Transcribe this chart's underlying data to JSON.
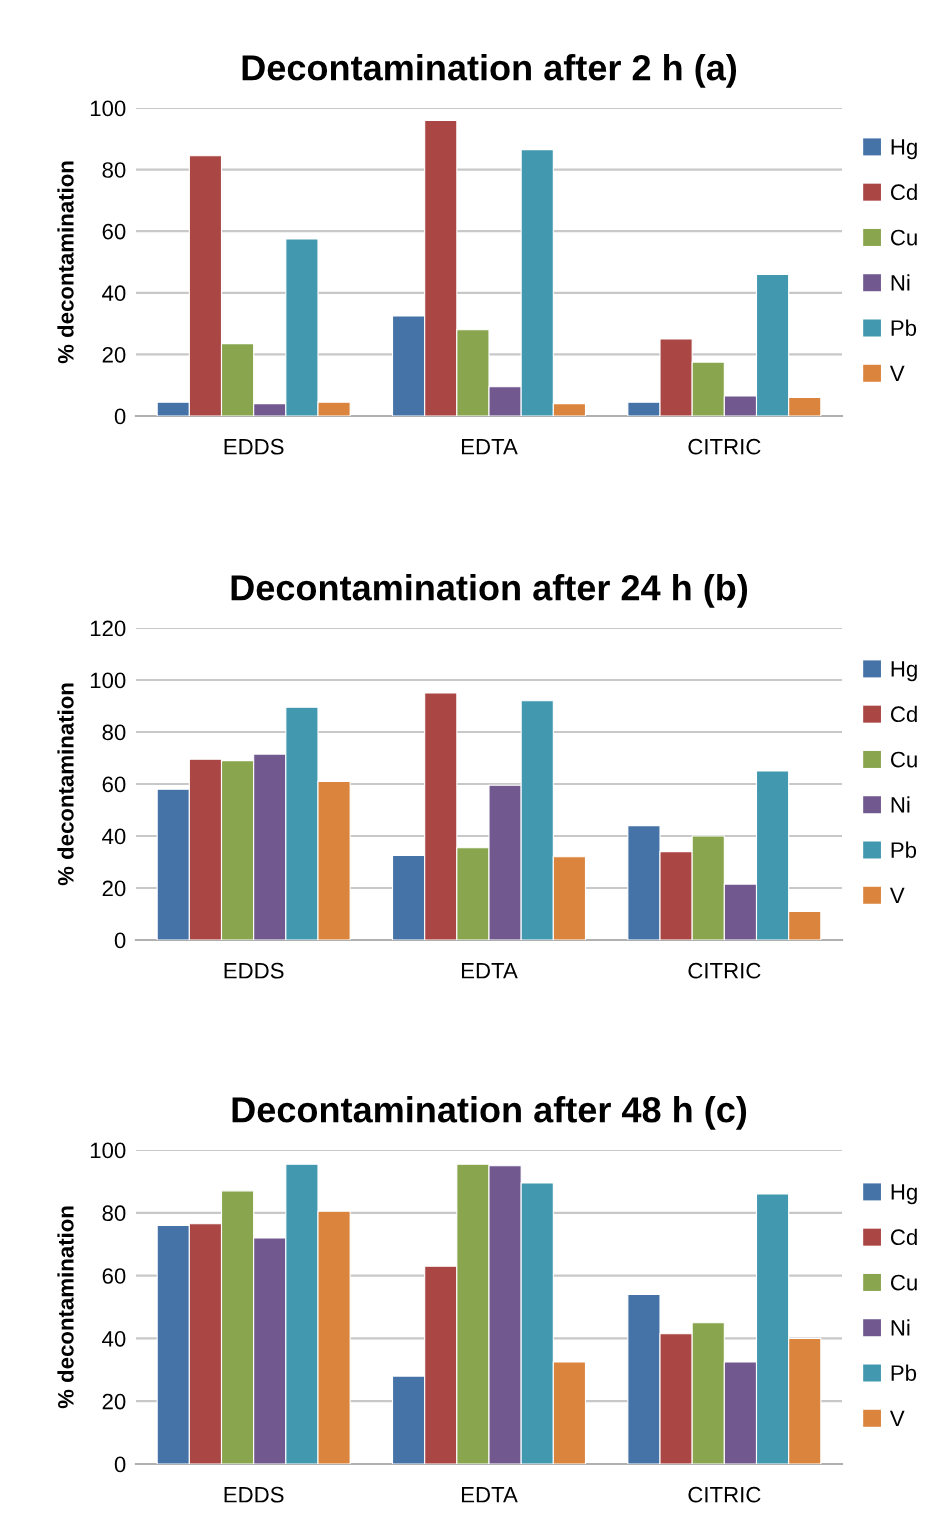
{
  "chart_data": [
    {
      "type": "bar",
      "title": "Decontamination after 2 h (a)",
      "ylabel": "% decontamination",
      "categories": [
        "EDDS",
        "EDTA",
        "CITRIC"
      ],
      "ylim": [
        0,
        100
      ],
      "yticks": [
        0,
        20,
        40,
        60,
        80,
        100
      ],
      "grid": "y",
      "legend": "right",
      "series": [
        {
          "name": "Hg",
          "color": "#4572a7",
          "values": [
            4.5,
            32.5,
            4.5
          ]
        },
        {
          "name": "Cd",
          "color": "#aa4643",
          "values": [
            84.5,
            96,
            25
          ]
        },
        {
          "name": "Cu",
          "color": "#89a54e",
          "values": [
            23.5,
            28,
            17.5
          ]
        },
        {
          "name": "Ni",
          "color": "#71588f",
          "values": [
            4,
            9.5,
            6.5
          ]
        },
        {
          "name": "Pb",
          "color": "#4198af",
          "values": [
            57.5,
            86.5,
            46
          ]
        },
        {
          "name": "V",
          "color": "#db843d",
          "values": [
            4.5,
            4,
            6
          ]
        }
      ]
    },
    {
      "type": "bar",
      "title": "Decontamination after 24 h (b)",
      "ylabel": "% decontamination",
      "categories": [
        "EDDS",
        "EDTA",
        "CITRIC"
      ],
      "ylim": [
        0,
        120
      ],
      "yticks": [
        0,
        20,
        40,
        60,
        80,
        100,
        120
      ],
      "grid": "y",
      "legend": "right",
      "series": [
        {
          "name": "Hg",
          "color": "#4572a7",
          "values": [
            58,
            32.5,
            44
          ]
        },
        {
          "name": "Cd",
          "color": "#aa4643",
          "values": [
            69.5,
            95,
            34
          ]
        },
        {
          "name": "Cu",
          "color": "#89a54e",
          "values": [
            69,
            35.5,
            40
          ]
        },
        {
          "name": "Ni",
          "color": "#71588f",
          "values": [
            71.5,
            59.5,
            21.5
          ]
        },
        {
          "name": "Pb",
          "color": "#4198af",
          "values": [
            89.5,
            92,
            65
          ]
        },
        {
          "name": "V",
          "color": "#db843d",
          "values": [
            61,
            32,
            11
          ]
        }
      ]
    },
    {
      "type": "bar",
      "title": "Decontamination after 48 h (c)",
      "ylabel": "% decontamination",
      "categories": [
        "EDDS",
        "EDTA",
        "CITRIC"
      ],
      "ylim": [
        0,
        100
      ],
      "yticks": [
        0,
        20,
        40,
        60,
        80,
        100
      ],
      "grid": "y",
      "legend": "right",
      "series": [
        {
          "name": "Hg",
          "color": "#4572a7",
          "values": [
            76,
            28,
            54
          ]
        },
        {
          "name": "Cd",
          "color": "#aa4643",
          "values": [
            76.5,
            63,
            41.5
          ]
        },
        {
          "name": "Cu",
          "color": "#89a54e",
          "values": [
            87,
            95.5,
            45
          ]
        },
        {
          "name": "Ni",
          "color": "#71588f",
          "values": [
            72,
            95,
            32.5
          ]
        },
        {
          "name": "Pb",
          "color": "#4198af",
          "values": [
            95.5,
            89.5,
            86
          ]
        },
        {
          "name": "V",
          "color": "#db843d",
          "values": [
            80.5,
            32.5,
            40
          ]
        }
      ]
    }
  ]
}
